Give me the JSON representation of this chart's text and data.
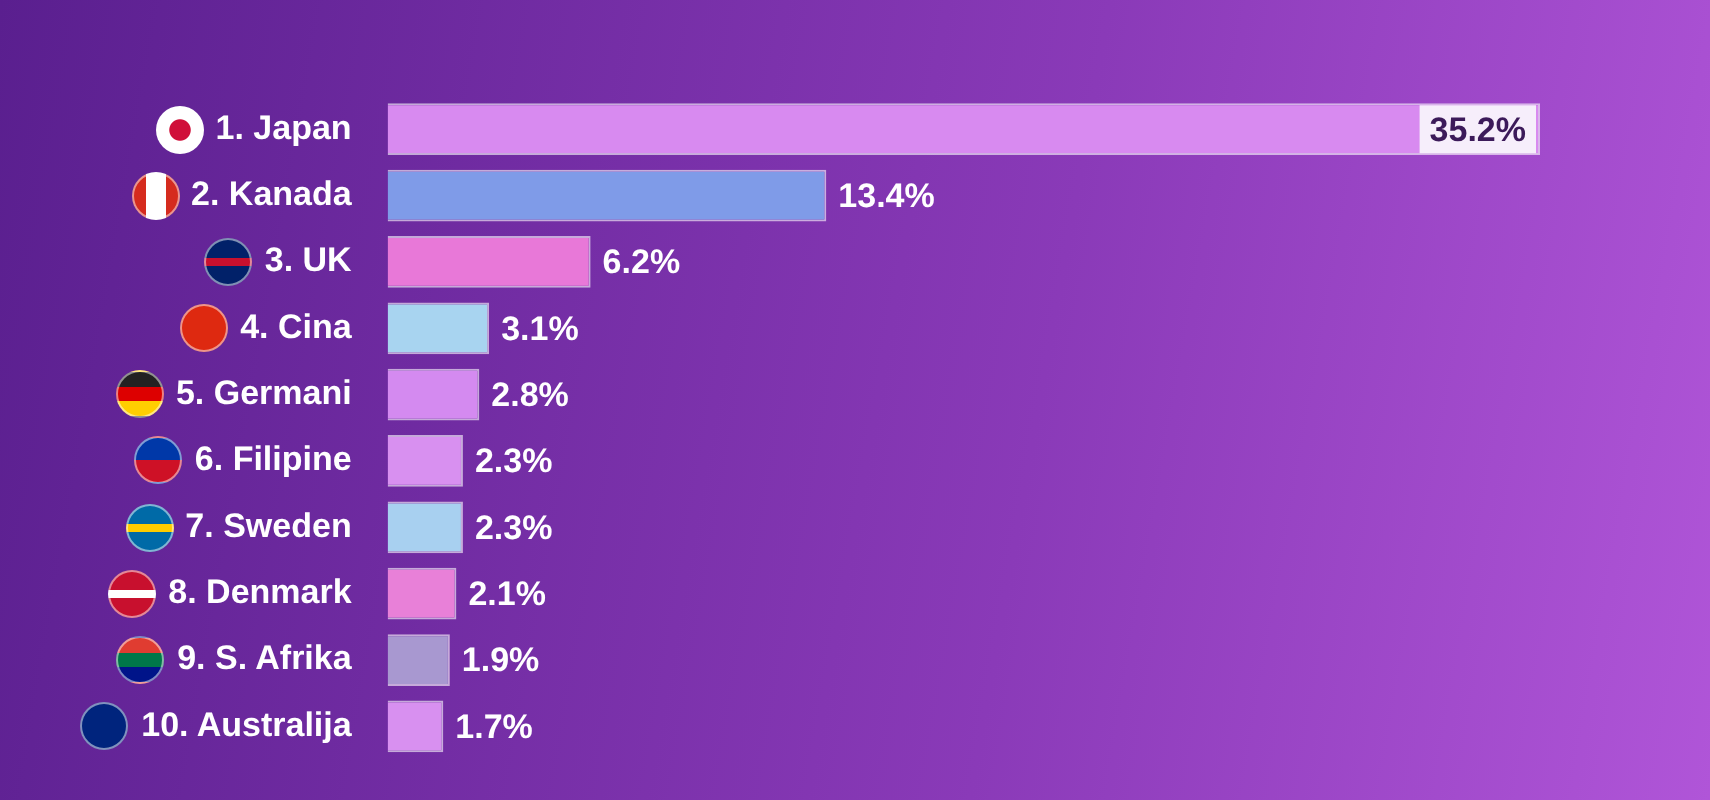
{
  "chart_data": {
    "type": "bar",
    "orientation": "horizontal",
    "categories": [
      "1. Japan",
      "2. Kanada",
      "3. UK",
      "4. Cina",
      "5. Germani",
      "6. Filipine",
      "7. Sweden",
      "8. Denmark",
      "9. S. Afrika",
      "10. Australija"
    ],
    "values": [
      35.2,
      13.4,
      6.2,
      3.1,
      2.8,
      2.3,
      2.3,
      2.1,
      1.9,
      1.7
    ],
    "value_labels": [
      "35.2%",
      "13.4%",
      "6.2%",
      "3.1%",
      "2.8%",
      "2.3%",
      "2.3%",
      "2.1%",
      "1.9%",
      "1.7%"
    ],
    "colors": [
      "#d88af0",
      "#7f9be8",
      "#e878d8",
      "#a8d4f0",
      "#d48af0",
      "#d890f0",
      "#a8d0f0",
      "#e880d8",
      "#a898d0",
      "#d890f0"
    ]
  }
}
